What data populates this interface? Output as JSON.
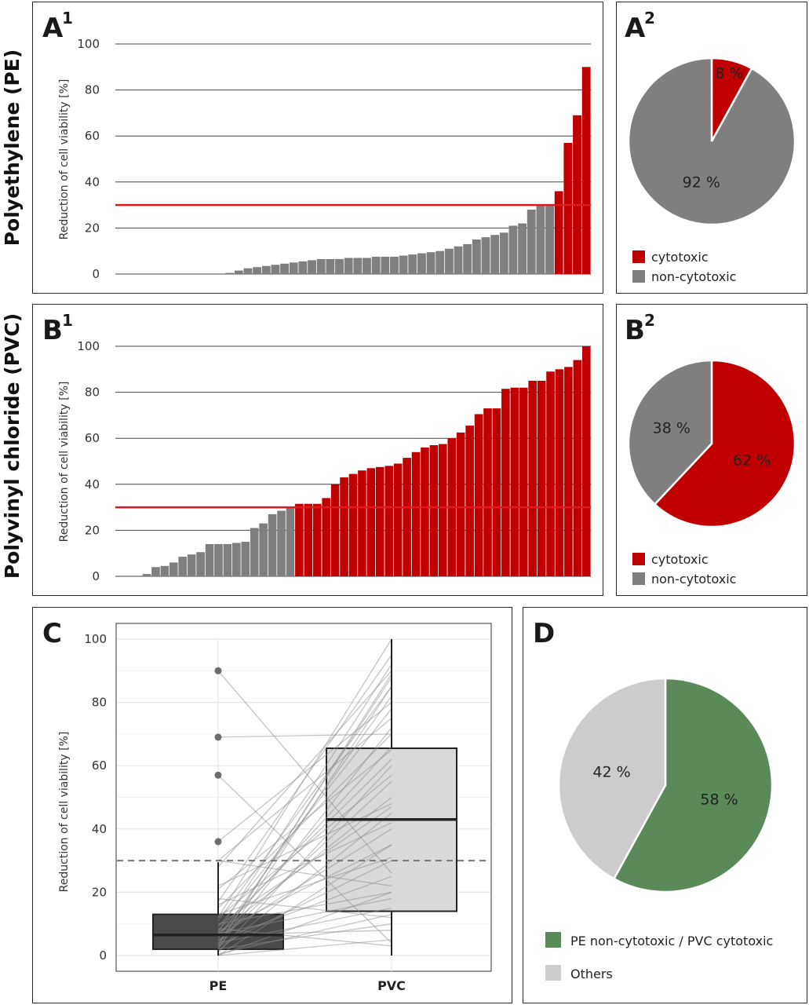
{
  "colors": {
    "cytotoxic": "#c00000",
    "noncytotoxic": "#7f7f7f",
    "threshold": "#e0191f",
    "pe_box": "#4a4a4a",
    "pvc_box": "#d9d9d9",
    "green": "#5a8a5a",
    "others": "#cccccc"
  },
  "row_labels": {
    "pe": "Polyethylene (PE)",
    "pvc": "Polyvinyl chloride (PVC)"
  },
  "panels": {
    "a1": {
      "letter": "A",
      "sup": "1"
    },
    "a2": {
      "letter": "A",
      "sup": "2"
    },
    "b1": {
      "letter": "B",
      "sup": "1"
    },
    "b2": {
      "letter": "B",
      "sup": "2"
    },
    "c": {
      "letter": "C"
    },
    "d": {
      "letter": "D"
    }
  },
  "chart_data": [
    {
      "id": "A1",
      "type": "bar",
      "ylabel": "Reduction of cell viability  [%]",
      "ylim": [
        0,
        100
      ],
      "yticks": [
        0,
        20,
        40,
        60,
        80,
        100
      ],
      "threshold": 30,
      "values": [
        0,
        0,
        0,
        0,
        0,
        0,
        0,
        0,
        0,
        0,
        0,
        0,
        0.5,
        1.5,
        2.5,
        3,
        3.5,
        4,
        4.5,
        5,
        5.5,
        6,
        6.5,
        6.5,
        6.5,
        7,
        7,
        7,
        7.5,
        7.5,
        7.5,
        8,
        8.5,
        9,
        9.5,
        10,
        11,
        12,
        13,
        15,
        16,
        17,
        18,
        21,
        22,
        28,
        30,
        30,
        36,
        57,
        69,
        90
      ],
      "cytotoxic_from": 48
    },
    {
      "id": "A2",
      "type": "pie",
      "slices": [
        {
          "label": "cytotoxic",
          "value": 8,
          "text": "8 %"
        },
        {
          "label": "non-cytotoxic",
          "value": 92,
          "text": "92 %"
        }
      ]
    },
    {
      "id": "B1",
      "type": "bar",
      "ylabel": "Reduction of cell viability  [%]",
      "ylim": [
        0,
        100
      ],
      "yticks": [
        0,
        20,
        40,
        60,
        80,
        100
      ],
      "threshold": 30,
      "values": [
        0,
        0,
        0,
        1,
        4,
        4.5,
        6,
        8.5,
        9.5,
        10.5,
        14,
        14,
        14,
        14.5,
        15,
        21,
        23,
        27,
        28.5,
        30,
        31.5,
        31.5,
        31.5,
        34,
        40,
        43,
        44.5,
        46,
        47,
        47.5,
        48,
        49,
        51.5,
        54,
        56,
        57,
        57.5,
        60,
        62.5,
        65.5,
        70.5,
        73,
        73,
        81.5,
        82,
        82,
        85,
        85,
        89,
        90,
        91,
        94,
        100
      ],
      "cytotoxic_from": 20
    },
    {
      "id": "B2",
      "type": "pie",
      "slices": [
        {
          "label": "cytotoxic",
          "value": 62,
          "text": "62 %"
        },
        {
          "label": "non-cytotoxic",
          "value": 38,
          "text": "38 %"
        }
      ]
    },
    {
      "id": "C",
      "type": "box",
      "ylabel": "Reduction of cell viability  [%]",
      "ylim": [
        0,
        100
      ],
      "yticks": [
        0,
        20,
        40,
        60,
        80,
        100
      ],
      "threshold": 30,
      "categories": [
        "PE",
        "PVC"
      ],
      "boxes": [
        {
          "name": "PE",
          "q1": 2,
          "median": 6.5,
          "q3": 13,
          "whisker_low": 0,
          "whisker_high": 29.5,
          "outliers": [
            36,
            57,
            69,
            90
          ]
        },
        {
          "name": "PVC",
          "q1": 14,
          "median": 43,
          "q3": 65.5,
          "whisker_low": 0,
          "whisker_high": 100,
          "outliers": []
        }
      ],
      "pairs": [
        [
          0,
          5
        ],
        [
          0,
          20
        ],
        [
          0,
          35
        ],
        [
          0.5,
          13
        ],
        [
          1,
          60
        ],
        [
          1.5,
          45
        ],
        [
          2,
          10
        ],
        [
          2.5,
          72
        ],
        [
          3,
          30
        ],
        [
          3.5,
          88
        ],
        [
          4,
          15
        ],
        [
          4.5,
          55
        ],
        [
          5,
          25
        ],
        [
          5.5,
          82
        ],
        [
          6,
          40
        ],
        [
          6.5,
          8
        ],
        [
          6.5,
          66
        ],
        [
          7,
          50
        ],
        [
          7,
          18
        ],
        [
          7.5,
          92
        ],
        [
          7.5,
          35
        ],
        [
          8,
          62
        ],
        [
          8.5,
          3
        ],
        [
          9,
          78
        ],
        [
          9.5,
          47
        ],
        [
          10,
          20
        ],
        [
          11,
          85
        ],
        [
          12,
          57
        ],
        [
          13,
          31
        ],
        [
          15,
          70
        ],
        [
          16,
          42
        ],
        [
          17,
          95
        ],
        [
          18,
          12
        ],
        [
          21,
          65
        ],
        [
          22,
          48
        ],
        [
          28,
          90
        ],
        [
          30,
          22
        ],
        [
          30,
          75
        ],
        [
          36,
          80
        ],
        [
          57,
          4
        ],
        [
          69,
          70
        ],
        [
          90,
          26
        ],
        [
          12,
          100
        ],
        [
          3,
          89
        ],
        [
          2,
          85
        ]
      ]
    },
    {
      "id": "D",
      "type": "pie",
      "slices": [
        {
          "label": "PE non-cytotoxic / PVC cytotoxic",
          "value": 58,
          "text": "58 %"
        },
        {
          "label": "Others",
          "value": 42,
          "text": "42 %"
        }
      ]
    }
  ]
}
